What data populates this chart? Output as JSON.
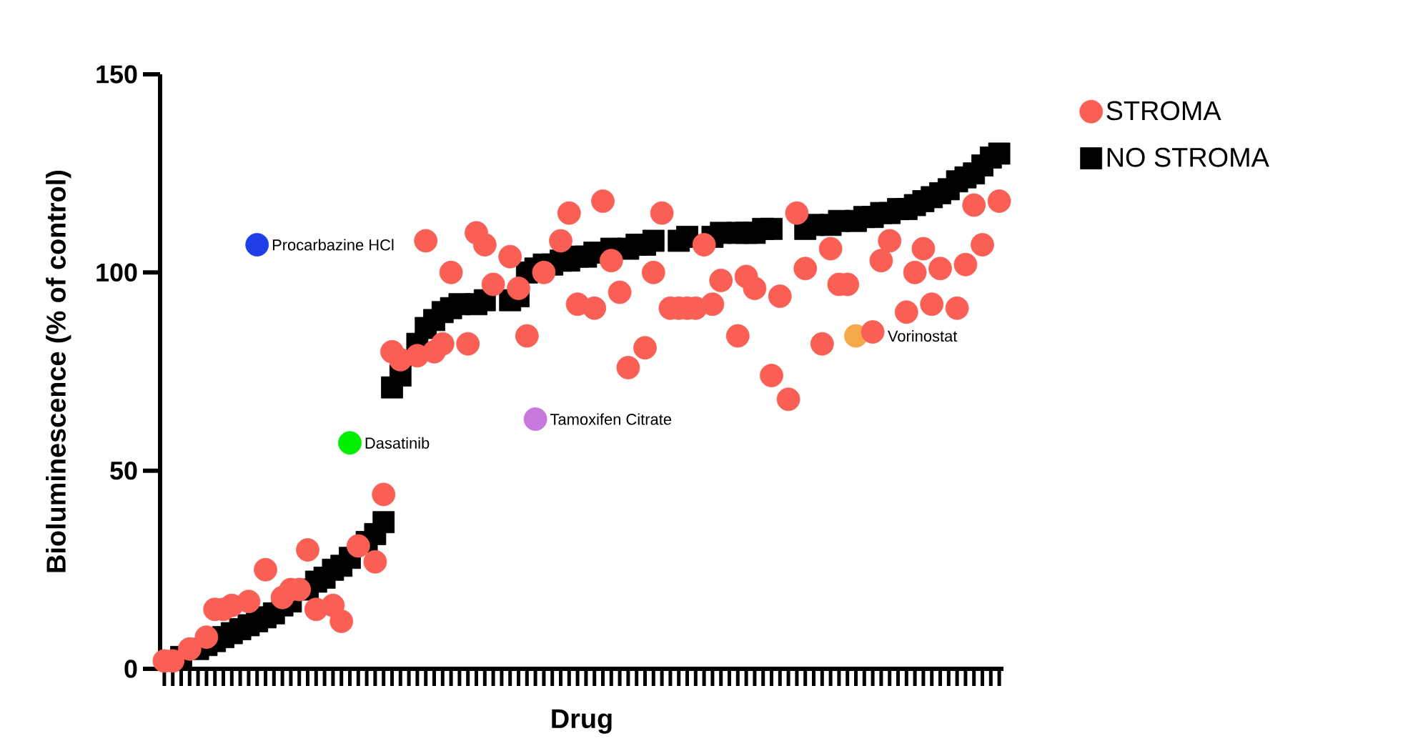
{
  "chart_data": {
    "type": "scatter",
    "xlabel": "Drug",
    "ylabel": "Bioluminescence (% of control)",
    "categories": [
      null,
      null,
      null,
      null,
      null,
      null,
      null,
      null,
      null,
      null,
      null,
      null,
      null,
      null,
      null,
      null,
      null,
      null,
      null,
      null,
      null,
      null,
      null,
      null,
      null,
      null,
      null,
      null,
      null,
      null,
      null,
      null,
      null,
      null,
      null,
      null,
      null,
      null,
      null,
      null,
      null,
      null,
      null,
      null,
      null,
      null,
      null,
      null,
      null,
      null,
      null,
      null,
      null,
      null,
      null,
      null,
      null,
      null,
      null,
      null,
      null,
      null,
      null,
      null,
      null,
      null,
      null,
      null,
      null,
      null,
      null,
      null,
      null,
      null,
      null,
      null,
      null,
      null,
      null,
      null,
      null,
      null,
      null,
      null,
      null,
      null,
      null,
      null,
      null,
      null,
      null,
      null,
      null,
      null,
      null,
      null,
      null,
      null,
      null,
      null
    ],
    "ylim": [
      0,
      150
    ],
    "yticks": [
      0,
      50,
      100,
      150
    ],
    "tick_labels": "y",
    "legend": "right",
    "series": [
      {
        "name": "STROMA",
        "color": "#fa5f55",
        "marker": "circle",
        "values": [
          2,
          2,
          null,
          5,
          null,
          8,
          15,
          15,
          16,
          null,
          17,
          null,
          25,
          null,
          18,
          20,
          20,
          30,
          15,
          null,
          16,
          12,
          null,
          31,
          null,
          27,
          44,
          80,
          78,
          null,
          79,
          108,
          80,
          82,
          100,
          null,
          82,
          110,
          107,
          97,
          null,
          104,
          96,
          84,
          null,
          100,
          null,
          108,
          115,
          92,
          null,
          91,
          118,
          103,
          95,
          76,
          null,
          81,
          100,
          115,
          91,
          91,
          91,
          91,
          107,
          92,
          98,
          null,
          84,
          99,
          96,
          null,
          74,
          94,
          68,
          115,
          101,
          null,
          82,
          106,
          97,
          97,
          null,
          null,
          85,
          103,
          108,
          null,
          90,
          100,
          106,
          92,
          101,
          null,
          91,
          102,
          117,
          107,
          null,
          118
        ]
      },
      {
        "name": "NO STROMA",
        "color": "#000000",
        "marker": "square",
        "values": [
          null,
          null,
          3,
          null,
          5,
          6,
          7,
          8,
          9,
          10,
          11,
          12,
          13,
          14,
          16,
          17,
          null,
          20,
          22,
          23,
          25,
          26,
          28,
          null,
          32,
          34,
          37,
          71,
          74,
          null,
          82,
          86,
          88,
          90,
          91,
          92,
          null,
          92,
          93,
          null,
          null,
          93,
          94,
          100,
          101,
          102,
          102,
          103,
          103,
          104,
          104,
          105,
          null,
          106,
          null,
          106,
          107,
          107,
          108,
          null,
          null,
          108,
          109,
          null,
          null,
          109,
          110,
          null,
          110,
          110,
          110,
          111,
          111,
          null,
          null,
          null,
          111,
          112,
          null,
          112,
          113,
          null,
          113,
          114,
          114,
          115,
          115,
          116,
          116,
          117,
          118,
          119,
          120,
          121,
          123,
          124,
          125,
          127,
          129,
          130
        ]
      },
      {
        "name": "Procarbazine HCl",
        "color": "#1f3fe6",
        "marker": "circle",
        "values": [
          null,
          null,
          null,
          null,
          null,
          null,
          null,
          null,
          null,
          null,
          null,
          107,
          null,
          null,
          null,
          null,
          null,
          null,
          null,
          null,
          null,
          null,
          null,
          null,
          null,
          null,
          null,
          null,
          null,
          null,
          null,
          null,
          null,
          null,
          null,
          null,
          null,
          null,
          null,
          null,
          null,
          null,
          null,
          null,
          null,
          null,
          null,
          null,
          null,
          null,
          null,
          null,
          null,
          null,
          null,
          null,
          null,
          null,
          null,
          null,
          null,
          null,
          null,
          null,
          null,
          null,
          null,
          null,
          null,
          null,
          null,
          null,
          null,
          null,
          null,
          null,
          null,
          null,
          null,
          null,
          null,
          null,
          null,
          null,
          null,
          null,
          null,
          null,
          null,
          null,
          null,
          null,
          null,
          null,
          null,
          null,
          null,
          null,
          null,
          null
        ]
      },
      {
        "name": "Dasatinib",
        "color": "#00ee00",
        "marker": "circle",
        "values": [
          null,
          null,
          null,
          null,
          null,
          null,
          null,
          null,
          null,
          null,
          null,
          null,
          null,
          null,
          null,
          null,
          null,
          null,
          null,
          null,
          null,
          null,
          57,
          null,
          null,
          null,
          null,
          null,
          null,
          null,
          null,
          null,
          null,
          null,
          null,
          null,
          null,
          null,
          null,
          null,
          null,
          null,
          null,
          null,
          null,
          null,
          null,
          null,
          null,
          null,
          null,
          null,
          null,
          null,
          null,
          null,
          null,
          null,
          null,
          null,
          null,
          null,
          null,
          null,
          null,
          null,
          null,
          null,
          null,
          null,
          null,
          null,
          null,
          null,
          null,
          null,
          null,
          null,
          null,
          null,
          null,
          null,
          null,
          null,
          null,
          null,
          null,
          null,
          null,
          null,
          null,
          null,
          null,
          null,
          null,
          null,
          null,
          null,
          null,
          null
        ]
      },
      {
        "name": "Tamoxifen Citrate",
        "color": "#c678dd",
        "marker": "circle",
        "values": [
          null,
          null,
          null,
          null,
          null,
          null,
          null,
          null,
          null,
          null,
          null,
          null,
          null,
          null,
          null,
          null,
          null,
          null,
          null,
          null,
          null,
          null,
          null,
          null,
          null,
          null,
          null,
          null,
          null,
          null,
          null,
          null,
          null,
          null,
          null,
          null,
          null,
          null,
          null,
          null,
          null,
          null,
          null,
          null,
          63,
          null,
          null,
          null,
          null,
          null,
          null,
          null,
          null,
          null,
          null,
          null,
          null,
          null,
          null,
          null,
          null,
          null,
          null,
          null,
          null,
          null,
          null,
          null,
          null,
          null,
          null,
          null,
          null,
          null,
          null,
          null,
          null,
          null,
          null,
          null,
          null,
          null,
          null,
          null,
          null,
          null,
          null,
          null,
          null,
          null,
          null,
          null,
          null,
          null,
          null,
          null,
          null,
          null,
          null,
          null
        ]
      },
      {
        "name": "Vorinostat",
        "color": "#f5a94a",
        "marker": "circle",
        "values": [
          null,
          null,
          null,
          null,
          null,
          null,
          null,
          null,
          null,
          null,
          null,
          null,
          null,
          null,
          null,
          null,
          null,
          null,
          null,
          null,
          null,
          null,
          null,
          null,
          null,
          null,
          null,
          null,
          null,
          null,
          null,
          null,
          null,
          null,
          null,
          null,
          null,
          null,
          null,
          null,
          null,
          null,
          null,
          null,
          null,
          null,
          null,
          null,
          null,
          null,
          null,
          null,
          null,
          null,
          null,
          null,
          null,
          null,
          null,
          null,
          null,
          null,
          null,
          null,
          null,
          null,
          null,
          null,
          null,
          null,
          null,
          null,
          null,
          null,
          null,
          null,
          null,
          null,
          null,
          null,
          null,
          null,
          84,
          null,
          null,
          null,
          null,
          null,
          null,
          null,
          null,
          null,
          null,
          null,
          null,
          null,
          null,
          null,
          null,
          null
        ]
      }
    ]
  }
}
